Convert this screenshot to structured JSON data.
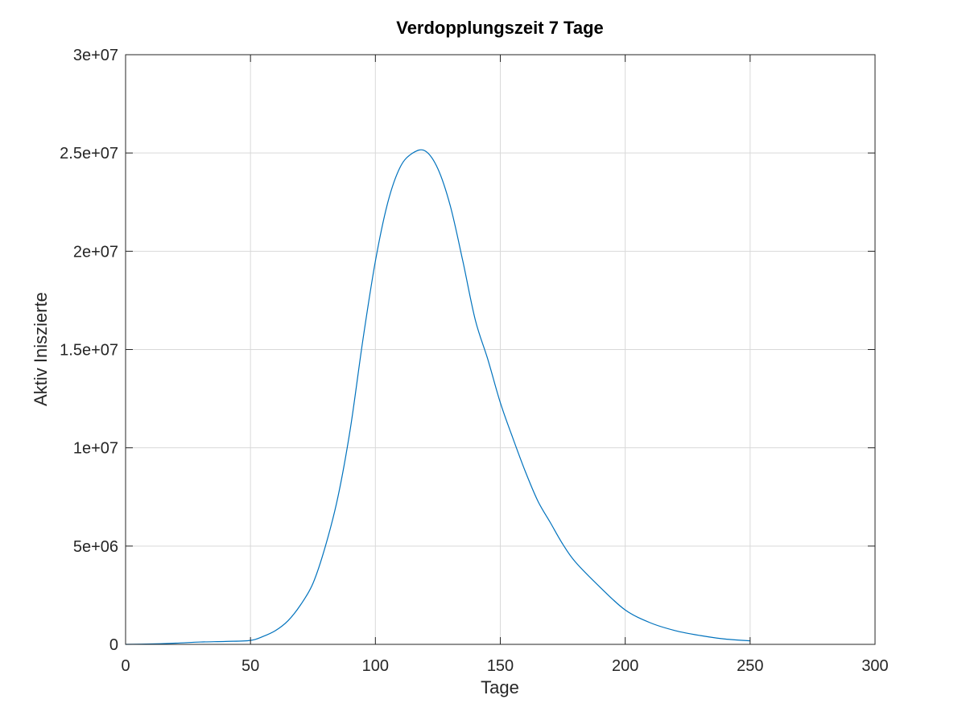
{
  "chart_data": {
    "type": "line",
    "title": "Verdopplungszeit 7 Tage",
    "xlabel": "Tage",
    "ylabel": "Aktiv Iniszierte",
    "xlim": [
      0,
      300
    ],
    "ylim": [
      0,
      30000000
    ],
    "xticks": [
      0,
      50,
      100,
      150,
      200,
      250,
      300
    ],
    "xtick_labels": [
      "0",
      "50",
      "100",
      "150",
      "200",
      "250",
      "300"
    ],
    "yticks": [
      0,
      5000000,
      10000000,
      15000000,
      20000000,
      25000000,
      30000000
    ],
    "ytick_labels": [
      "0",
      "5e+06",
      "1e+07",
      "1.5e+07",
      "2e+07",
      "2.5e+07",
      "3e+07"
    ],
    "grid": true,
    "legend": "none",
    "colors": {
      "line": "#0072bd",
      "grid": "#d9d9d9",
      "axis": "#262626"
    },
    "series": [
      {
        "x": [
          0,
          10,
          20,
          30,
          40,
          50,
          55,
          60,
          65,
          70,
          75,
          80,
          85,
          90,
          95,
          100,
          105,
          110,
          115,
          120,
          125,
          130,
          135,
          140,
          145,
          150,
          155,
          160,
          165,
          170,
          175,
          180,
          190,
          200,
          210,
          220,
          230,
          240,
          250
        ],
        "values": [
          0,
          20000,
          60000,
          120000,
          150000,
          200000,
          400000,
          700000,
          1200000,
          2000000,
          3100000,
          5000000,
          7500000,
          11000000,
          15500000,
          19500000,
          22500000,
          24300000,
          25000000,
          25100000,
          24200000,
          22300000,
          19500000,
          16500000,
          14500000,
          12300000,
          10500000,
          8800000,
          7300000,
          6200000,
          5100000,
          4200000,
          2900000,
          1750000,
          1100000,
          700000,
          450000,
          270000,
          180000
        ]
      }
    ]
  }
}
